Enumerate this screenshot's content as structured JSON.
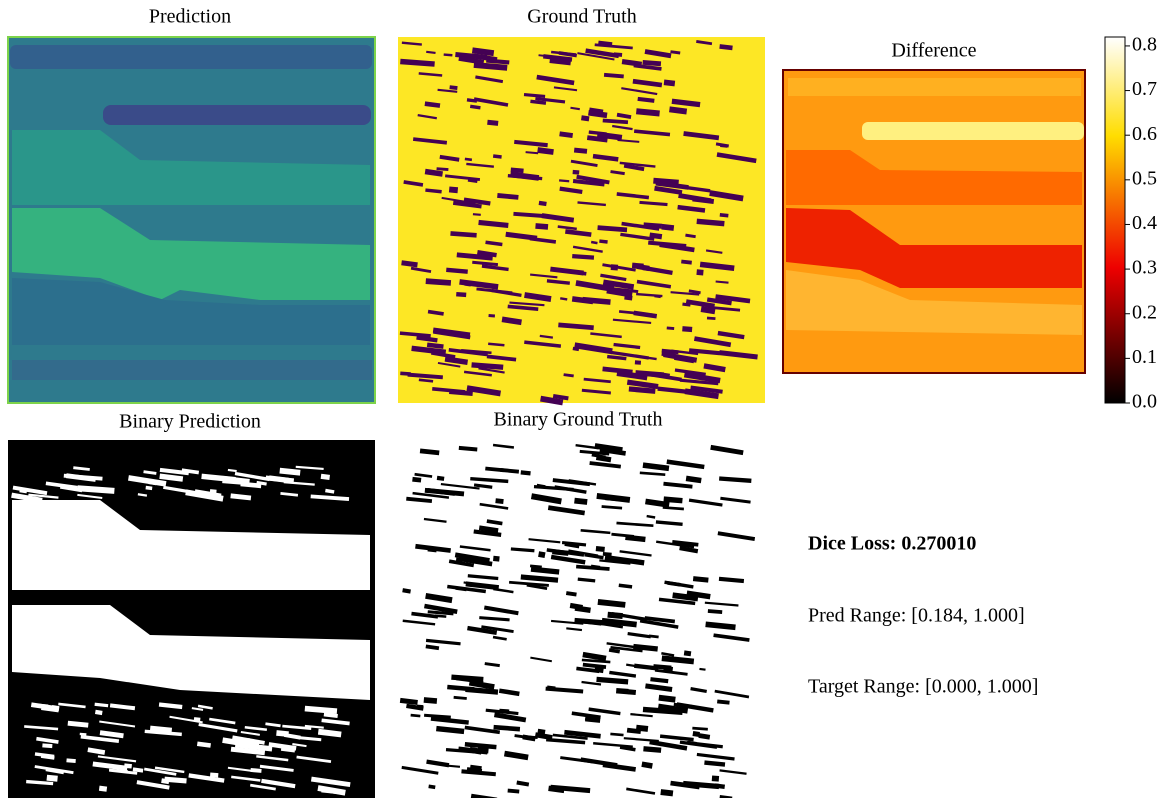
{
  "panels": [
    {
      "title": "Prediction"
    },
    {
      "title": "Ground Truth"
    },
    {
      "title": "Difference"
    },
    {
      "title": "Binary Prediction"
    },
    {
      "title": "Binary Ground Truth"
    }
  ],
  "colorbar": {
    "ylim": [
      0,
      0.82
    ],
    "yticks": [
      {
        "value": 0,
        "label": "0.0"
      },
      0.1,
      0.2,
      0.3,
      0.4,
      0.5,
      0.6,
      0.7,
      0.8
    ]
  },
  "metrics": {
    "dice_loss": "Dice Loss: 0.270010",
    "pred_range": "Pred Range: [0.184, 1.000]",
    "target_range": "Target Range: [0.000, 1.000]"
  }
}
